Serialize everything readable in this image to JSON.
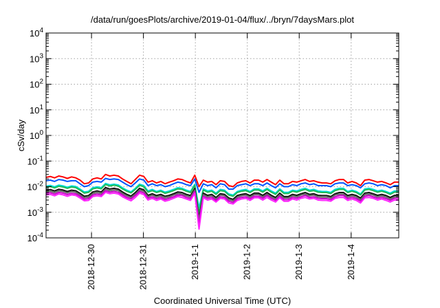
{
  "chart_data": {
    "type": "line",
    "title": "/data/run/goesPlots/archive/2019-01-04/flux/../bryn/7daysMars.plot",
    "xlabel": "Coordinated Universal Time (UTC)",
    "ylabel": "cSv/day",
    "xlim": [
      "2018-12-29 03:00",
      "2019-01-04 22:00"
    ],
    "ylim": [
      0.0001,
      10000
    ],
    "log_y": true,
    "grid": true,
    "legend": "none",
    "x_ticks": [
      "2018-12-30",
      "2018-12-31",
      "2019-1-1",
      "2019-1-2",
      "2019-1-3",
      "2019-1-4"
    ],
    "y_ticks": [
      {
        "base": "10",
        "exp": "-4"
      },
      {
        "base": "10",
        "exp": "-3"
      },
      {
        "base": "10",
        "exp": "-2"
      },
      {
        "base": "10",
        "exp": "-1"
      },
      {
        "base": "10",
        "exp": "0"
      },
      {
        "base": "10",
        "exp": "1"
      },
      {
        "base": "10",
        "exp": "2"
      },
      {
        "base": "10",
        "exp": "3"
      },
      {
        "base": "10",
        "exp": "4"
      }
    ],
    "series": [
      {
        "color": "#ff0000",
        "values": [
          0.023,
          0.025,
          0.022,
          0.026,
          0.024,
          0.021,
          0.024,
          0.022,
          0.018,
          0.013,
          0.014,
          0.02,
          0.022,
          0.02,
          0.03,
          0.026,
          0.028,
          0.026,
          0.02,
          0.016,
          0.013,
          0.019,
          0.028,
          0.025,
          0.015,
          0.017,
          0.014,
          0.016,
          0.013,
          0.015,
          0.017,
          0.02,
          0.019,
          0.016,
          0.014,
          0.028,
          0.01,
          0.018,
          0.015,
          0.016,
          0.012,
          0.017,
          0.016,
          0.011,
          0.01,
          0.014,
          0.016,
          0.017,
          0.014,
          0.018,
          0.018,
          0.015,
          0.019,
          0.015,
          0.012,
          0.018,
          0.013,
          0.013,
          0.016,
          0.015,
          0.017,
          0.019,
          0.016,
          0.017,
          0.015,
          0.014,
          0.014,
          0.013,
          0.017,
          0.019,
          0.019,
          0.014,
          0.016,
          0.014,
          0.011,
          0.018,
          0.019,
          0.017,
          0.015,
          0.016,
          0.014,
          0.012,
          0.015,
          0.015
        ]
      },
      {
        "color": "#0055ff",
        "values": [
          0.017,
          0.018,
          0.016,
          0.019,
          0.018,
          0.016,
          0.017,
          0.017,
          0.013,
          0.01,
          0.011,
          0.015,
          0.016,
          0.015,
          0.021,
          0.019,
          0.02,
          0.019,
          0.015,
          0.012,
          0.01,
          0.014,
          0.02,
          0.018,
          0.011,
          0.013,
          0.011,
          0.012,
          0.01,
          0.011,
          0.013,
          0.015,
          0.014,
          0.012,
          0.011,
          0.02,
          0.006,
          0.013,
          0.011,
          0.012,
          0.009,
          0.013,
          0.012,
          0.008,
          0.008,
          0.011,
          0.012,
          0.013,
          0.011,
          0.013,
          0.013,
          0.011,
          0.014,
          0.011,
          0.009,
          0.013,
          0.01,
          0.01,
          0.012,
          0.011,
          0.013,
          0.014,
          0.012,
          0.013,
          0.011,
          0.011,
          0.011,
          0.01,
          0.013,
          0.014,
          0.014,
          0.011,
          0.012,
          0.011,
          0.009,
          0.013,
          0.014,
          0.013,
          0.011,
          0.012,
          0.011,
          0.009,
          0.011,
          0.011
        ]
      },
      {
        "color": "#00dddd",
        "values": [
          0.0105,
          0.0112,
          0.0099,
          0.0115,
          0.0108,
          0.0095,
          0.0107,
          0.0101,
          0.0081,
          0.0062,
          0.0066,
          0.0091,
          0.0099,
          0.0091,
          0.0134,
          0.0118,
          0.0126,
          0.0117,
          0.009,
          0.0073,
          0.0063,
          0.0086,
          0.0125,
          0.011,
          0.0068,
          0.0078,
          0.0065,
          0.0073,
          0.0061,
          0.0068,
          0.0078,
          0.0091,
          0.0086,
          0.0073,
          0.0065,
          0.0124,
          0.0015,
          0.0082,
          0.0068,
          0.0073,
          0.0056,
          0.0078,
          0.0073,
          0.0052,
          0.0047,
          0.0065,
          0.0073,
          0.0078,
          0.0065,
          0.0082,
          0.0082,
          0.0068,
          0.0086,
          0.0068,
          0.0056,
          0.0082,
          0.006,
          0.006,
          0.0073,
          0.0068,
          0.0078,
          0.0086,
          0.0073,
          0.0078,
          0.0068,
          0.0065,
          0.0065,
          0.006,
          0.0078,
          0.0086,
          0.0086,
          0.0065,
          0.0073,
          0.0065,
          0.0052,
          0.0082,
          0.0086,
          0.0078,
          0.0068,
          0.0073,
          0.0065,
          0.0056,
          0.0068,
          0.0068
        ]
      },
      {
        "color": "#22bb55",
        "values": [
          0.0095,
          0.0101,
          0.0089,
          0.0104,
          0.0097,
          0.0086,
          0.0097,
          0.0091,
          0.0073,
          0.0056,
          0.006,
          0.0082,
          0.0089,
          0.0082,
          0.0121,
          0.0106,
          0.0114,
          0.0105,
          0.0081,
          0.0066,
          0.0057,
          0.0078,
          0.0113,
          0.0099,
          0.0061,
          0.007,
          0.0059,
          0.0066,
          0.0055,
          0.0061,
          0.007,
          0.0082,
          0.0078,
          0.0066,
          0.0059,
          0.0112,
          0.0009,
          0.0074,
          0.0061,
          0.0066,
          0.005,
          0.007,
          0.0066,
          0.0047,
          0.0042,
          0.0059,
          0.0066,
          0.007,
          0.0059,
          0.0074,
          0.0074,
          0.0061,
          0.0078,
          0.0061,
          0.005,
          0.0074,
          0.0054,
          0.0054,
          0.0066,
          0.0061,
          0.007,
          0.0078,
          0.0066,
          0.007,
          0.0061,
          0.0059,
          0.0059,
          0.0054,
          0.007,
          0.0078,
          0.0078,
          0.0059,
          0.0066,
          0.0059,
          0.0047,
          0.0074,
          0.0078,
          0.007,
          0.0061,
          0.0066,
          0.0059,
          0.005,
          0.0061,
          0.0061
        ]
      },
      {
        "color": "#111111",
        "values": [
          0.0072,
          0.0077,
          0.0068,
          0.0079,
          0.0074,
          0.0065,
          0.0073,
          0.0069,
          0.0055,
          0.0042,
          0.0045,
          0.0062,
          0.0068,
          0.0062,
          0.0092,
          0.0081,
          0.0086,
          0.008,
          0.0062,
          0.005,
          0.0043,
          0.0059,
          0.0086,
          0.0075,
          0.0046,
          0.0053,
          0.0045,
          0.005,
          0.0042,
          0.0046,
          0.0053,
          0.0062,
          0.0059,
          0.005,
          0.0045,
          0.0085,
          0.0006,
          0.0056,
          0.0046,
          0.005,
          0.0038,
          0.0053,
          0.005,
          0.0036,
          0.0032,
          0.0045,
          0.005,
          0.0053,
          0.0045,
          0.0056,
          0.0056,
          0.0046,
          0.0059,
          0.0046,
          0.0038,
          0.0056,
          0.0041,
          0.0041,
          0.005,
          0.0046,
          0.0053,
          0.0059,
          0.005,
          0.0053,
          0.0046,
          0.0045,
          0.0045,
          0.0041,
          0.0053,
          0.0059,
          0.0059,
          0.0045,
          0.005,
          0.0045,
          0.0036,
          0.0056,
          0.0059,
          0.0053,
          0.0046,
          0.005,
          0.0045,
          0.0038,
          0.0046,
          0.0046
        ]
      },
      {
        "color": "#666666",
        "values": [
          0.0063,
          0.0067,
          0.0059,
          0.0069,
          0.0065,
          0.0057,
          0.0064,
          0.006,
          0.0048,
          0.0037,
          0.0039,
          0.0054,
          0.0059,
          0.0054,
          0.008,
          0.007,
          0.0075,
          0.007,
          0.0054,
          0.0044,
          0.0038,
          0.0051,
          0.0075,
          0.0066,
          0.004,
          0.0047,
          0.0039,
          0.0044,
          0.0036,
          0.004,
          0.0047,
          0.0054,
          0.0051,
          0.0044,
          0.0039,
          0.0074,
          0.0005,
          0.0049,
          0.004,
          0.0044,
          0.0033,
          0.0047,
          0.0044,
          0.0031,
          0.0028,
          0.0039,
          0.0044,
          0.0047,
          0.0039,
          0.0049,
          0.0049,
          0.004,
          0.0051,
          0.004,
          0.0033,
          0.0049,
          0.0036,
          0.0036,
          0.0044,
          0.004,
          0.0047,
          0.0051,
          0.0044,
          0.0047,
          0.004,
          0.0039,
          0.0039,
          0.0036,
          0.0047,
          0.0051,
          0.0051,
          0.0039,
          0.0044,
          0.0039,
          0.0031,
          0.0049,
          0.0051,
          0.0047,
          0.004,
          0.0044,
          0.0039,
          0.0033,
          0.004,
          0.004
        ]
      },
      {
        "color": "#cc00cc",
        "values": [
          0.0055,
          0.0058,
          0.0051,
          0.006,
          0.0056,
          0.0049,
          0.0055,
          0.0052,
          0.0042,
          0.0032,
          0.0034,
          0.0047,
          0.0051,
          0.0047,
          0.0069,
          0.0061,
          0.0065,
          0.006,
          0.0047,
          0.0038,
          0.0033,
          0.0045,
          0.0065,
          0.0057,
          0.0035,
          0.004,
          0.0034,
          0.0038,
          0.0031,
          0.0035,
          0.004,
          0.0047,
          0.0045,
          0.0038,
          0.0034,
          0.0064,
          0.00035,
          0.0042,
          0.0035,
          0.0038,
          0.0029,
          0.004,
          0.0038,
          0.0027,
          0.0024,
          0.0034,
          0.0038,
          0.004,
          0.0034,
          0.0042,
          0.0042,
          0.0035,
          0.0045,
          0.0035,
          0.0029,
          0.0042,
          0.0031,
          0.0031,
          0.0038,
          0.0035,
          0.004,
          0.0045,
          0.0038,
          0.004,
          0.0035,
          0.0034,
          0.0034,
          0.0031,
          0.004,
          0.0045,
          0.0045,
          0.0034,
          0.0038,
          0.0034,
          0.0027,
          0.0042,
          0.0045,
          0.004,
          0.0035,
          0.0038,
          0.0034,
          0.0029,
          0.0035,
          0.0035
        ]
      },
      {
        "color": "#ff22ff",
        "values": [
          0.0047,
          0.005,
          0.0044,
          0.0052,
          0.0048,
          0.0042,
          0.0048,
          0.0045,
          0.0036,
          0.0028,
          0.0029,
          0.0041,
          0.0044,
          0.0041,
          0.006,
          0.0053,
          0.0056,
          0.0052,
          0.004,
          0.0033,
          0.0028,
          0.0038,
          0.0056,
          0.0049,
          0.003,
          0.0035,
          0.0029,
          0.0033,
          0.0027,
          0.003,
          0.0035,
          0.0041,
          0.0038,
          0.0033,
          0.0029,
          0.0055,
          0.00022,
          0.0037,
          0.003,
          0.0033,
          0.0025,
          0.0035,
          0.0033,
          0.0023,
          0.0021,
          0.0029,
          0.0033,
          0.0035,
          0.0029,
          0.0037,
          0.0037,
          0.003,
          0.0038,
          0.003,
          0.0025,
          0.0037,
          0.0027,
          0.0027,
          0.0033,
          0.003,
          0.0035,
          0.0038,
          0.0033,
          0.0035,
          0.003,
          0.0029,
          0.0029,
          0.0027,
          0.0035,
          0.0038,
          0.0038,
          0.0029,
          0.0033,
          0.0029,
          0.0023,
          0.0037,
          0.0038,
          0.0035,
          0.003,
          0.0033,
          0.0029,
          0.0025,
          0.003,
          0.003
        ]
      }
    ]
  }
}
